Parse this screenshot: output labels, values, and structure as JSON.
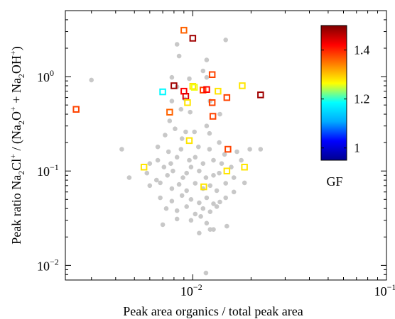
{
  "chart_data": {
    "type": "scatter",
    "xlabel": "Peak area organics / total peak area",
    "ylabel": {
      "prefix": "Peak ratio Na",
      "sub1": "2",
      "cl": "Cl",
      "sup1": "+",
      "mid": " / (Na",
      "sub2": "2",
      "o": "O",
      "sup2": "+",
      "plus": " + Na",
      "sub3": "2",
      "oh": "OH",
      "sup3": "+",
      "close": ")"
    },
    "xscale": "log",
    "yscale": "log",
    "xlim": [
      0.0022,
      0.1
    ],
    "ylim": [
      0.007,
      5.0
    ],
    "xticks": [
      {
        "value": 0.01,
        "base": "10",
        "exp": "−2"
      },
      {
        "value": 0.1,
        "base": "10",
        "exp": "−1"
      }
    ],
    "yticks": [
      {
        "value": 0.01,
        "base": "10",
        "exp": "−2"
      },
      {
        "value": 0.1,
        "base": "10",
        "exp": "−1"
      },
      {
        "value": 1,
        "base": "10",
        "exp": "0"
      }
    ],
    "grid": false,
    "colorbar": {
      "label": "GF",
      "range": [
        0.95,
        1.5
      ],
      "ticks": [
        "1",
        "1.2",
        "1.4"
      ],
      "tick_values": [
        1.0,
        1.2,
        1.4
      ],
      "colormap": [
        "#00008f",
        "#0000ff",
        "#00aaff",
        "#00ffff",
        "#ffff00",
        "#ff7f00",
        "#ff0000",
        "#7f0000"
      ]
    },
    "series": [
      {
        "marker": "filled-circle",
        "color": "#c8c8c8",
        "points": [
          [
            0.003,
            0.92
          ],
          [
            0.0083,
            2.2
          ],
          [
            0.0148,
            2.45
          ],
          [
            0.0085,
            1.65
          ],
          [
            0.0118,
            1.5
          ],
          [
            0.0113,
            1.15
          ],
          [
            0.0078,
            0.98
          ],
          [
            0.0118,
            0.98
          ],
          [
            0.0091,
            0.58
          ],
          [
            0.0096,
            0.95
          ],
          [
            0.0083,
            0.78
          ],
          [
            0.0078,
            0.55
          ],
          [
            0.0123,
            0.55
          ],
          [
            0.0138,
            0.4
          ],
          [
            0.0087,
            0.45
          ],
          [
            0.0097,
            0.42
          ],
          [
            0.0076,
            0.34
          ],
          [
            0.0118,
            0.3
          ],
          [
            0.0081,
            0.28
          ],
          [
            0.0092,
            0.26
          ],
          [
            0.0102,
            0.26
          ],
          [
            0.0122,
            0.25
          ],
          [
            0.0072,
            0.24
          ],
          [
            0.0088,
            0.22
          ],
          [
            0.0043,
            0.17
          ],
          [
            0.0066,
            0.18
          ],
          [
            0.0075,
            0.16
          ],
          [
            0.0087,
            0.17
          ],
          [
            0.0107,
            0.18
          ],
          [
            0.0122,
            0.17
          ],
          [
            0.0137,
            0.2
          ],
          [
            0.0146,
            0.15
          ],
          [
            0.0169,
            0.16
          ],
          [
            0.0197,
            0.17
          ],
          [
            0.006,
            0.12
          ],
          [
            0.0066,
            0.13
          ],
          [
            0.0071,
            0.11
          ],
          [
            0.0077,
            0.12
          ],
          [
            0.0083,
            0.14
          ],
          [
            0.0096,
            0.13
          ],
          [
            0.0103,
            0.14
          ],
          [
            0.0113,
            0.12
          ],
          [
            0.0128,
            0.13
          ],
          [
            0.0141,
            0.12
          ],
          [
            0.0158,
            0.11
          ],
          [
            0.0178,
            0.13
          ],
          [
            0.0224,
            0.17
          ],
          [
            0.0047,
            0.085
          ],
          [
            0.0058,
            0.095
          ],
          [
            0.0065,
            0.08
          ],
          [
            0.0074,
            0.09
          ],
          [
            0.0079,
            0.1
          ],
          [
            0.0089,
            0.085
          ],
          [
            0.0093,
            0.095
          ],
          [
            0.0098,
            0.11
          ],
          [
            0.0108,
            0.1
          ],
          [
            0.0117,
            0.085
          ],
          [
            0.0128,
            0.09
          ],
          [
            0.0137,
            0.095
          ],
          [
            0.0163,
            0.085
          ],
          [
            0.0185,
            0.075
          ],
          [
            0.006,
            0.07
          ],
          [
            0.0068,
            0.075
          ],
          [
            0.0078,
            0.065
          ],
          [
            0.0085,
            0.072
          ],
          [
            0.0093,
            0.062
          ],
          [
            0.0103,
            0.074
          ],
          [
            0.0113,
            0.065
          ],
          [
            0.0123,
            0.07
          ],
          [
            0.0133,
            0.062
          ],
          [
            0.0148,
            0.074
          ],
          [
            0.0163,
            0.06
          ],
          [
            0.0068,
            0.052
          ],
          [
            0.0078,
            0.048
          ],
          [
            0.0088,
            0.055
          ],
          [
            0.0098,
            0.05
          ],
          [
            0.0108,
            0.046
          ],
          [
            0.0118,
            0.052
          ],
          [
            0.0128,
            0.045
          ],
          [
            0.0138,
            0.047
          ],
          [
            0.0148,
            0.052
          ],
          [
            0.0073,
            0.04
          ],
          [
            0.0083,
            0.038
          ],
          [
            0.0093,
            0.042
          ],
          [
            0.0103,
            0.035
          ],
          [
            0.0113,
            0.04
          ],
          [
            0.0123,
            0.037
          ],
          [
            0.0133,
            0.042
          ],
          [
            0.0098,
            0.03
          ],
          [
            0.011,
            0.033
          ],
          [
            0.0118,
            0.028
          ],
          [
            0.0123,
            0.024
          ],
          [
            0.0128,
            0.024
          ],
          [
            0.015,
            0.026
          ],
          [
            0.007,
            0.027
          ],
          [
            0.0083,
            0.031
          ],
          [
            0.0108,
            0.022
          ],
          [
            0.0117,
            0.0083
          ]
        ]
      },
      {
        "marker": "open-square",
        "colored_by": "GF",
        "points": [
          [
            0.0025,
            0.45,
            1.38
          ],
          [
            0.009,
            3.1,
            1.36
          ],
          [
            0.01,
            2.55,
            1.48
          ],
          [
            0.0126,
            1.05,
            1.38
          ],
          [
            0.008,
            0.8,
            1.48
          ],
          [
            0.009,
            0.7,
            1.42
          ],
          [
            0.0092,
            0.62,
            1.44
          ],
          [
            0.01,
            0.79,
            1.28
          ],
          [
            0.0102,
            0.77,
            1.26
          ],
          [
            0.0113,
            0.72,
            1.38
          ],
          [
            0.0118,
            0.73,
            1.42
          ],
          [
            0.0135,
            0.7,
            1.28
          ],
          [
            0.018,
            0.8,
            1.28
          ],
          [
            0.0224,
            0.64,
            1.48
          ],
          [
            0.007,
            0.69,
            1.18
          ],
          [
            0.0076,
            0.42,
            1.36
          ],
          [
            0.0094,
            0.53,
            1.28
          ],
          [
            0.0126,
            0.53,
            1.38
          ],
          [
            0.0127,
            0.38,
            1.38
          ],
          [
            0.015,
            0.6,
            1.38
          ],
          [
            0.0096,
            0.21,
            1.28
          ],
          [
            0.0152,
            0.17,
            1.38
          ],
          [
            0.0056,
            0.11,
            1.28
          ],
          [
            0.0114,
            0.068,
            1.28
          ],
          [
            0.015,
            0.1,
            1.28
          ],
          [
            0.0185,
            0.11,
            1.28
          ]
        ]
      }
    ]
  }
}
